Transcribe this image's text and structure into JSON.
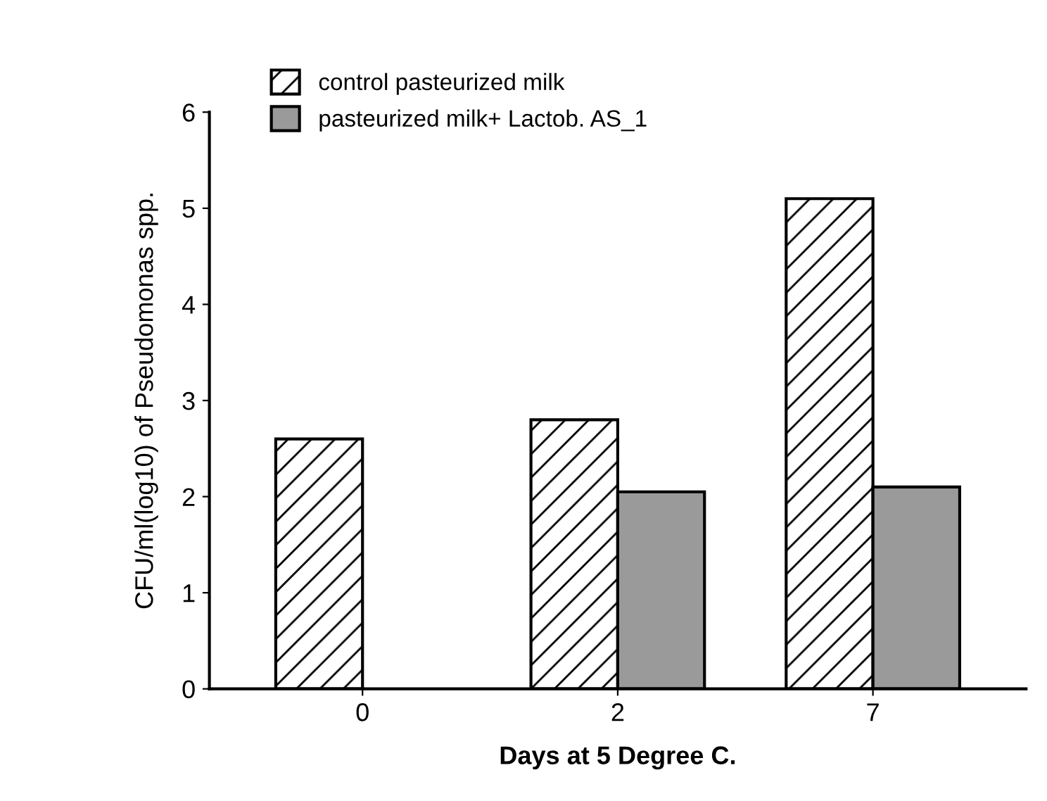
{
  "chart_data": {
    "type": "bar",
    "xlabel": "Days at 5 Degree C.",
    "ylabel": "CFU/ml(log10) of Pseudomonas spp.",
    "categories": [
      "0",
      "2",
      "7"
    ],
    "series": [
      {
        "name": "control pasteurized milk",
        "color": "#000000",
        "values": [
          2.6,
          2.8,
          5.1
        ]
      },
      {
        "name": "pasteurized milk+ Lactob. AS_1",
        "color": "#9a9a9a",
        "values": [
          null,
          2.05,
          2.1
        ]
      }
    ],
    "ylim": [
      0,
      6
    ],
    "yticks": [
      0,
      1,
      2,
      3,
      4,
      5,
      6
    ],
    "grid": false,
    "legend": "top"
  }
}
